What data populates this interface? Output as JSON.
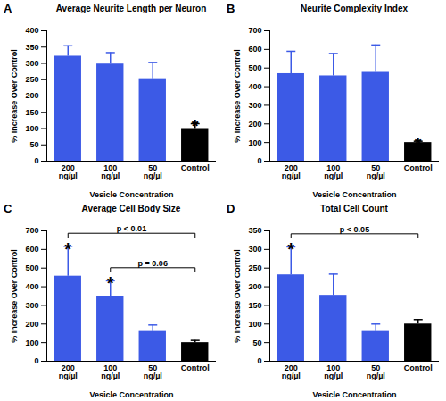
{
  "chart_data": [
    {
      "type": "bar",
      "panel_label": "A",
      "title": "Average Neurite Length per Neuron",
      "xlabel": "Vesicle Concentration",
      "ylabel": "% Increase Over Control",
      "categories": [
        "200\nng/µl",
        "100\nng/µl",
        "50\nng/µl",
        "Control"
      ],
      "values": [
        322,
        298,
        253,
        100
      ],
      "errors": [
        32,
        35,
        50,
        15
      ],
      "colors": [
        "#3c5ae6",
        "#3c5ae6",
        "#3c5ae6",
        "#000000"
      ],
      "ylim": [
        0,
        400
      ],
      "yticks": [
        0,
        50,
        100,
        150,
        200,
        250,
        300,
        350,
        400
      ],
      "annotations": [
        {
          "category": "Control",
          "text": "*"
        }
      ],
      "brackets": []
    },
    {
      "type": "bar",
      "panel_label": "B",
      "title": "Neurite Complexity Index",
      "xlabel": "Vesicle Concentration",
      "ylabel": "% Increase Over Control",
      "categories": [
        "200\nng/µl",
        "100\nng/µl",
        "50\nng/µl",
        "Control"
      ],
      "values": [
        470,
        458,
        477,
        100
      ],
      "errors": [
        120,
        120,
        147,
        7
      ],
      "colors": [
        "#3c5ae6",
        "#3c5ae6",
        "#3c5ae6",
        "#000000"
      ],
      "ylim": [
        0,
        700
      ],
      "yticks": [
        0,
        100,
        200,
        300,
        400,
        500,
        600,
        700
      ],
      "annotations": [
        {
          "category": "Control",
          "text": "*"
        }
      ],
      "brackets": []
    },
    {
      "type": "bar",
      "panel_label": "C",
      "title": "Average Cell Body Size",
      "xlabel": "Vesicle Concentration",
      "ylabel": "% Increase Over Control",
      "categories": [
        "200\nng/µl",
        "100\nng/µl",
        "50\nng/µl",
        "Control"
      ],
      "values": [
        457,
        350,
        160,
        100
      ],
      "errors": [
        160,
        82,
        35,
        12
      ],
      "colors": [
        "#3c5ae6",
        "#3c5ae6",
        "#3c5ae6",
        "#000000"
      ],
      "ylim": [
        0,
        700
      ],
      "yticks": [
        0,
        100,
        200,
        300,
        400,
        500,
        600,
        700
      ],
      "annotations": [
        {
          "category": "200\nng/µl",
          "text": "*"
        },
        {
          "category": "100\nng/µl",
          "text": "*"
        }
      ],
      "brackets": [
        {
          "from": "200\nng/µl",
          "to": "Control",
          "text": "p < 0.01"
        },
        {
          "from": "100\nng/µl",
          "to": "Control",
          "text": "p = 0.06"
        }
      ]
    },
    {
      "type": "bar",
      "panel_label": "D",
      "title": "Total Cell Count",
      "xlabel": "Vesicle Concentration",
      "ylabel": "% Increase Over Control",
      "categories": [
        "200\nng/µl",
        "100\nng/µl",
        "50\nng/µl",
        "Control"
      ],
      "values": [
        232,
        177,
        80,
        100
      ],
      "errors": [
        75,
        57,
        20,
        12
      ],
      "colors": [
        "#3c5ae6",
        "#3c5ae6",
        "#3c5ae6",
        "#000000"
      ],
      "ylim": [
        0,
        350
      ],
      "yticks": [
        0,
        50,
        100,
        150,
        200,
        250,
        300,
        350
      ],
      "annotations": [
        {
          "category": "200\nng/µl",
          "text": "*"
        }
      ],
      "brackets": [
        {
          "from": "200\nng/µl",
          "to": "Control",
          "text": "p < 0.05"
        }
      ]
    }
  ]
}
